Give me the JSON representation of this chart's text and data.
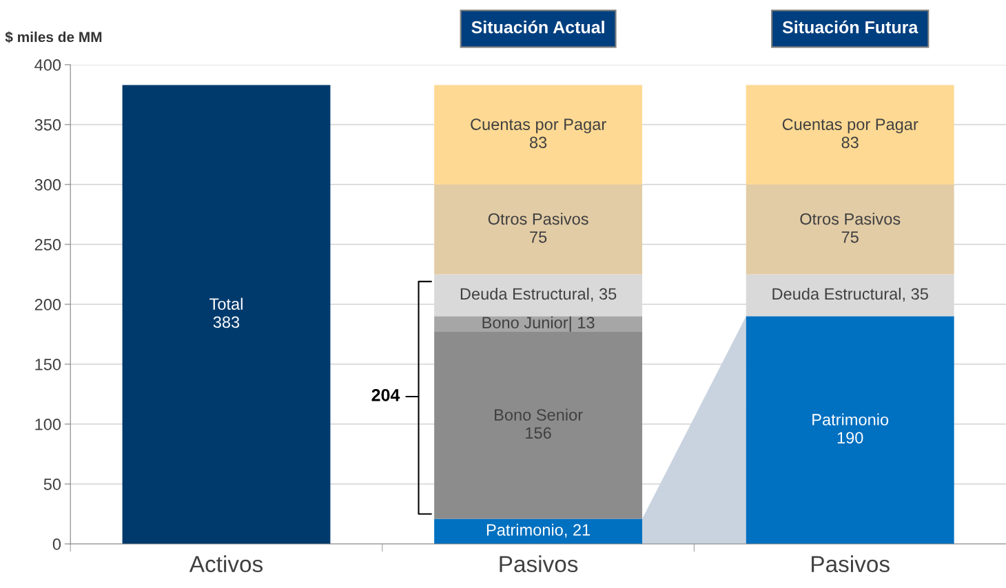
{
  "chart_data": {
    "type": "bar",
    "stacked": true,
    "ylabel": "$ miles de MM",
    "categories": [
      "Activos",
      "Pasivos",
      "Pasivos"
    ],
    "series": [
      {
        "color": "#003a6c",
        "values": [
          383,
          null,
          null
        ],
        "value_labels": [
          "Total\n383",
          null,
          null
        ]
      },
      {
        "color": "#0070c0",
        "values": [
          null,
          21,
          190
        ],
        "value_labels": [
          null,
          "Patrimonio, 21",
          "Patrimonio\n190"
        ]
      },
      {
        "color": "#8c8c8c",
        "values": [
          null,
          156,
          null
        ],
        "value_labels": [
          null,
          "Bono Senior\n156",
          null
        ]
      },
      {
        "color": "#a6a6a6",
        "values": [
          null,
          13,
          null
        ],
        "value_labels": [
          null,
          "Bono Junior| 13",
          null
        ]
      },
      {
        "color": "#d9d9d9",
        "values": [
          null,
          35,
          35
        ],
        "value_labels": [
          null,
          "Deuda Estructural, 35",
          "Deuda Estructural, 35"
        ]
      },
      {
        "color": "#e2cca6",
        "values": [
          null,
          75,
          75
        ],
        "value_labels": [
          null,
          "Otros Pasivos\n75",
          "Otros Pasivos\n75"
        ]
      },
      {
        "color": "#fdd993",
        "values": [
          null,
          83,
          83
        ],
        "value_labels": [
          null,
          "Cuentas por Pagar\n83",
          "Cuentas por Pagar\n83"
        ]
      }
    ],
    "ylim": [
      0,
      400
    ],
    "yticks": [
      0,
      50,
      100,
      150,
      200,
      250,
      300,
      350,
      400
    ],
    "grid": "y",
    "legend": false,
    "annotations": [
      "Situación Actual",
      "Situación Futura",
      "204"
    ]
  }
}
